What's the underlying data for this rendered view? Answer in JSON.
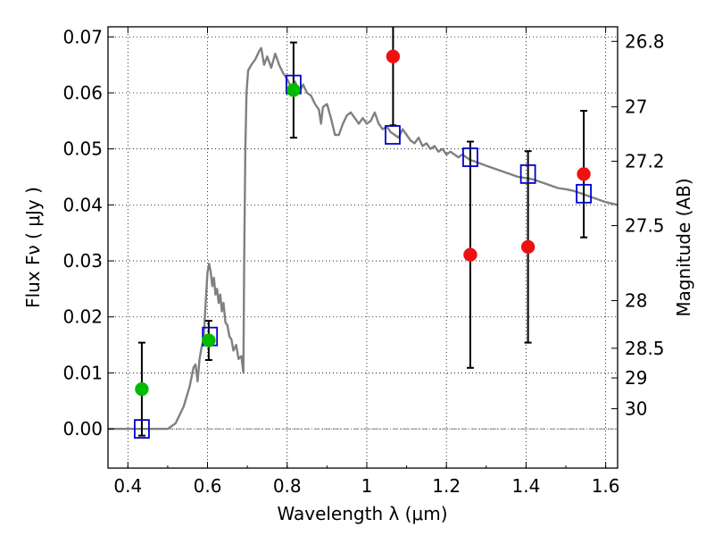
{
  "chart_data": {
    "type": "scatter",
    "xlabel": "Wavelength  λ (μm)",
    "ylabel": "Flux  Fν  ( μJy )",
    "ylabel_right": "Magnitude (AB)",
    "xlim": [
      0.35,
      1.63
    ],
    "ylim": [
      -0.007,
      0.0718
    ],
    "grid": true,
    "x_ticks": [
      0.4,
      0.6,
      0.8,
      1.0,
      1.2,
      1.4,
      1.6
    ],
    "x_tick_labels": [
      "0.4",
      "0.6",
      "0.8",
      "1",
      "1.2",
      "1.4",
      "1.6"
    ],
    "y_ticks": [
      0.0,
      0.01,
      0.02,
      0.03,
      0.04,
      0.05,
      0.06,
      0.07
    ],
    "y_tick_labels": [
      "0.00",
      "0.01",
      "0.02",
      "0.03",
      "0.04",
      "0.05",
      "0.06",
      "0.07"
    ],
    "right_ticks": [
      {
        "label": "26.8",
        "flux": 0.0692
      },
      {
        "label": "27",
        "flux": 0.0575
      },
      {
        "label": "27.2",
        "flux": 0.0478
      },
      {
        "label": "27.5",
        "flux": 0.0363
      },
      {
        "label": "28",
        "flux": 0.0229
      },
      {
        "label": "28.5",
        "flux": 0.0144
      },
      {
        "label": "29",
        "flux": 0.0091
      },
      {
        "label": "30",
        "flux": 0.0036
      }
    ],
    "series": [
      {
        "kind": "line",
        "color": "#808080",
        "points": [
          [
            0.35,
            0.0
          ],
          [
            0.44,
            0.0
          ],
          [
            0.5,
            0.0
          ],
          [
            0.52,
            0.001
          ],
          [
            0.54,
            0.004
          ],
          [
            0.555,
            0.0075
          ],
          [
            0.565,
            0.011
          ],
          [
            0.57,
            0.0115
          ],
          [
            0.575,
            0.0085
          ],
          [
            0.58,
            0.0125
          ],
          [
            0.585,
            0.0145
          ],
          [
            0.59,
            0.016
          ],
          [
            0.595,
            0.022
          ],
          [
            0.6,
            0.028
          ],
          [
            0.604,
            0.0295
          ],
          [
            0.608,
            0.028
          ],
          [
            0.612,
            0.0255
          ],
          [
            0.616,
            0.027
          ],
          [
            0.62,
            0.024
          ],
          [
            0.624,
            0.025
          ],
          [
            0.628,
            0.0225
          ],
          [
            0.632,
            0.024
          ],
          [
            0.636,
            0.021
          ],
          [
            0.64,
            0.0225
          ],
          [
            0.645,
            0.019
          ],
          [
            0.65,
            0.0185
          ],
          [
            0.655,
            0.0165
          ],
          [
            0.66,
            0.016
          ],
          [
            0.665,
            0.014
          ],
          [
            0.672,
            0.015
          ],
          [
            0.678,
            0.0125
          ],
          [
            0.685,
            0.013
          ],
          [
            0.69,
            0.01
          ],
          [
            0.692,
            0.03
          ],
          [
            0.695,
            0.05
          ],
          [
            0.698,
            0.06
          ],
          [
            0.702,
            0.064
          ],
          [
            0.71,
            0.065
          ],
          [
            0.72,
            0.066
          ],
          [
            0.73,
            0.0675
          ],
          [
            0.735,
            0.068
          ],
          [
            0.742,
            0.065
          ],
          [
            0.75,
            0.0665
          ],
          [
            0.76,
            0.0645
          ],
          [
            0.77,
            0.067
          ],
          [
            0.78,
            0.065
          ],
          [
            0.79,
            0.0635
          ],
          [
            0.8,
            0.0625
          ],
          [
            0.81,
            0.061
          ],
          [
            0.82,
            0.062
          ],
          [
            0.83,
            0.06
          ],
          [
            0.84,
            0.0615
          ],
          [
            0.85,
            0.06
          ],
          [
            0.86,
            0.0595
          ],
          [
            0.87,
            0.058
          ],
          [
            0.88,
            0.057
          ],
          [
            0.885,
            0.0545
          ],
          [
            0.89,
            0.0575
          ],
          [
            0.9,
            0.058
          ],
          [
            0.91,
            0.0555
          ],
          [
            0.92,
            0.0525
          ],
          [
            0.93,
            0.0525
          ],
          [
            0.94,
            0.0545
          ],
          [
            0.95,
            0.056
          ],
          [
            0.96,
            0.0565
          ],
          [
            0.97,
            0.0555
          ],
          [
            0.98,
            0.0545
          ],
          [
            0.99,
            0.0555
          ],
          [
            1.0,
            0.0545
          ],
          [
            1.01,
            0.055
          ],
          [
            1.02,
            0.0565
          ],
          [
            1.03,
            0.0545
          ],
          [
            1.04,
            0.0535
          ],
          [
            1.05,
            0.054
          ],
          [
            1.06,
            0.053
          ],
          [
            1.07,
            0.0525
          ],
          [
            1.08,
            0.052
          ],
          [
            1.09,
            0.0535
          ],
          [
            1.1,
            0.0525
          ],
          [
            1.11,
            0.0515
          ],
          [
            1.12,
            0.051
          ],
          [
            1.13,
            0.052
          ],
          [
            1.14,
            0.0505
          ],
          [
            1.15,
            0.051
          ],
          [
            1.16,
            0.05
          ],
          [
            1.17,
            0.0505
          ],
          [
            1.18,
            0.0495
          ],
          [
            1.19,
            0.05
          ],
          [
            1.2,
            0.049
          ],
          [
            1.21,
            0.0495
          ],
          [
            1.22,
            0.049
          ],
          [
            1.23,
            0.0485
          ],
          [
            1.24,
            0.049
          ],
          [
            1.25,
            0.0485
          ],
          [
            1.26,
            0.048
          ],
          [
            1.27,
            0.0478
          ],
          [
            1.28,
            0.0475
          ],
          [
            1.3,
            0.047
          ],
          [
            1.32,
            0.0465
          ],
          [
            1.34,
            0.046
          ],
          [
            1.36,
            0.0455
          ],
          [
            1.38,
            0.045
          ],
          [
            1.4,
            0.0448
          ],
          [
            1.42,
            0.0445
          ],
          [
            1.44,
            0.044
          ],
          [
            1.46,
            0.0435
          ],
          [
            1.48,
            0.043
          ],
          [
            1.5,
            0.0428
          ],
          [
            1.52,
            0.0425
          ],
          [
            1.54,
            0.042
          ],
          [
            1.56,
            0.0415
          ],
          [
            1.58,
            0.041
          ],
          [
            1.6,
            0.0405
          ],
          [
            1.63,
            0.04
          ]
        ]
      },
      {
        "kind": "squares",
        "color": "#0000cc",
        "points": [
          [
            0.435,
            0.0
          ],
          [
            0.606,
            0.0165
          ],
          [
            0.816,
            0.0615
          ],
          [
            1.065,
            0.0525
          ],
          [
            1.26,
            0.0485
          ],
          [
            1.405,
            0.0455
          ],
          [
            1.545,
            0.042
          ]
        ]
      },
      {
        "kind": "points",
        "color": "#00bb00",
        "points": [
          [
            0.435,
            0.0071,
            0.0083
          ],
          [
            0.603,
            0.0158,
            0.0035
          ],
          [
            0.816,
            0.0605,
            0.0085
          ]
        ]
      },
      {
        "kind": "points",
        "color": "#ee1111",
        "points": [
          [
            1.066,
            0.0665,
            0.0123
          ],
          [
            1.26,
            0.0311,
            0.0202
          ],
          [
            1.405,
            0.0325,
            0.0171
          ],
          [
            1.545,
            0.0455,
            0.0113
          ]
        ]
      }
    ]
  }
}
